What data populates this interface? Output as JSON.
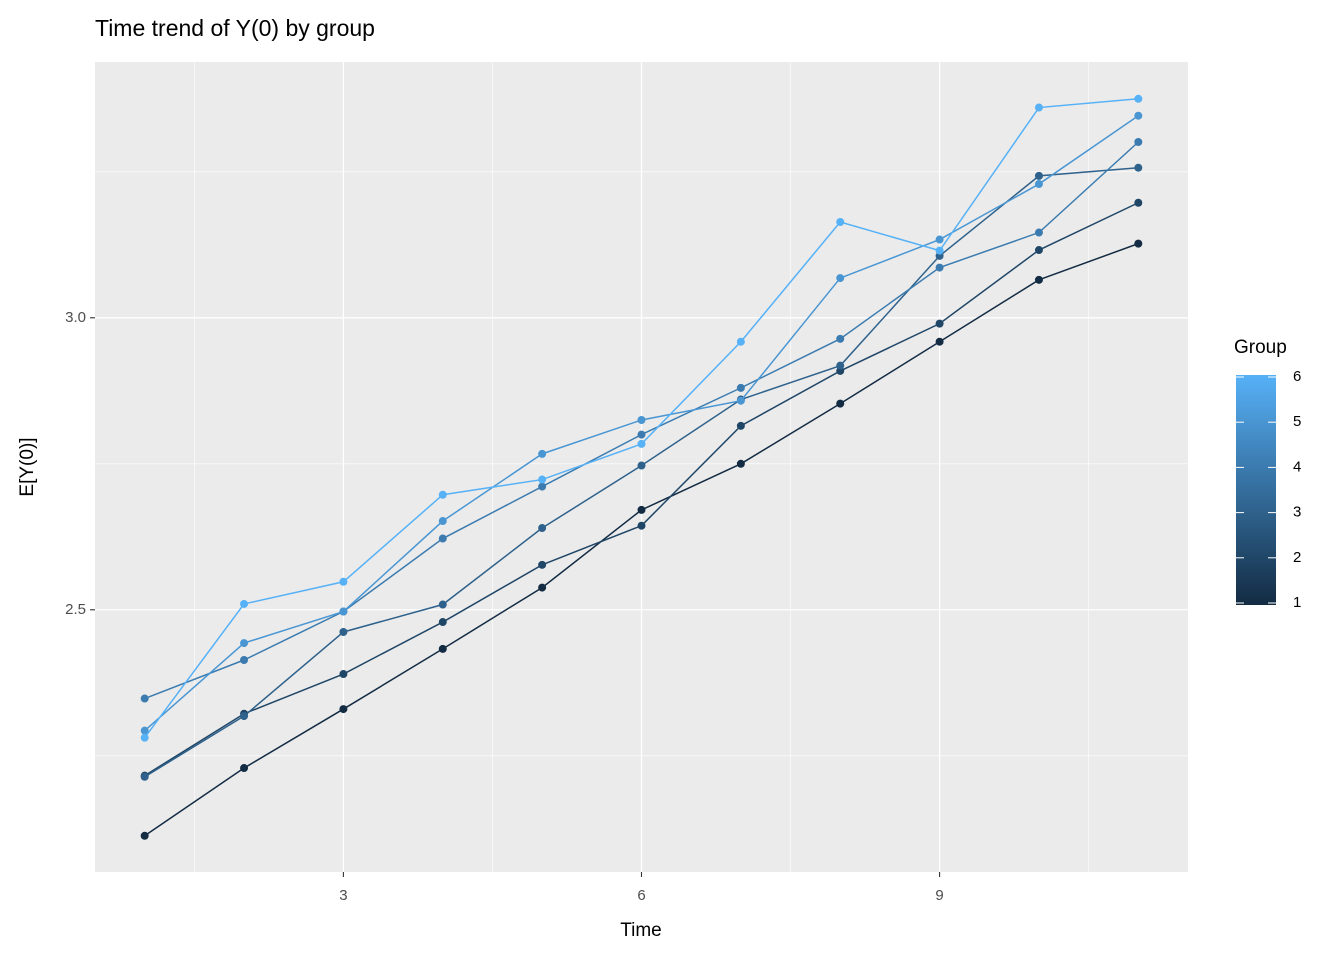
{
  "chart_data": {
    "type": "line",
    "title": "Time trend of Y(0) by group",
    "x_label": "Time",
    "y_label": "E[Y(0)]",
    "legend_title": "Group",
    "x": [
      1,
      2,
      3,
      4,
      5,
      6,
      7,
      8,
      9,
      10,
      11
    ],
    "series": [
      {
        "name": "1",
        "color": "#132B43",
        "values": [
          2.113,
          2.229,
          2.33,
          2.433,
          2.538,
          2.671,
          2.75,
          2.853,
          2.959,
          3.065,
          3.127
        ]
      },
      {
        "name": "2",
        "color": "#204667",
        "values": [
          2.216,
          2.322,
          2.39,
          2.479,
          2.577,
          2.644,
          2.815,
          2.909,
          2.99,
          3.116,
          3.197
        ]
      },
      {
        "name": "3",
        "color": "#2E618B",
        "values": [
          2.214,
          2.318,
          2.462,
          2.509,
          2.64,
          2.747,
          2.86,
          2.918,
          3.106,
          3.243,
          3.257
        ]
      },
      {
        "name": "4",
        "color": "#3B7BAF",
        "values": [
          2.348,
          2.414,
          2.497,
          2.622,
          2.711,
          2.8,
          2.88,
          2.964,
          3.086,
          3.146,
          3.301
        ]
      },
      {
        "name": "5",
        "color": "#4996D3",
        "values": [
          2.293,
          2.443,
          2.497,
          2.652,
          2.767,
          2.825,
          2.858,
          3.068,
          3.134,
          3.229,
          3.346
        ]
      },
      {
        "name": "6",
        "color": "#56B1F7",
        "values": [
          2.281,
          2.51,
          2.548,
          2.697,
          2.723,
          2.784,
          2.959,
          3.164,
          3.115,
          3.36,
          3.375
        ]
      }
    ],
    "xlim": [
      0.5,
      11.5
    ],
    "xticks": [
      3,
      6,
      9
    ],
    "ylim": [
      2.051,
      3.438
    ],
    "yticks": [
      {
        "value": 2.5,
        "label": "2.5"
      },
      {
        "value": 3.0,
        "label": "3.0"
      }
    ],
    "grid": true,
    "legend_position": "right"
  }
}
